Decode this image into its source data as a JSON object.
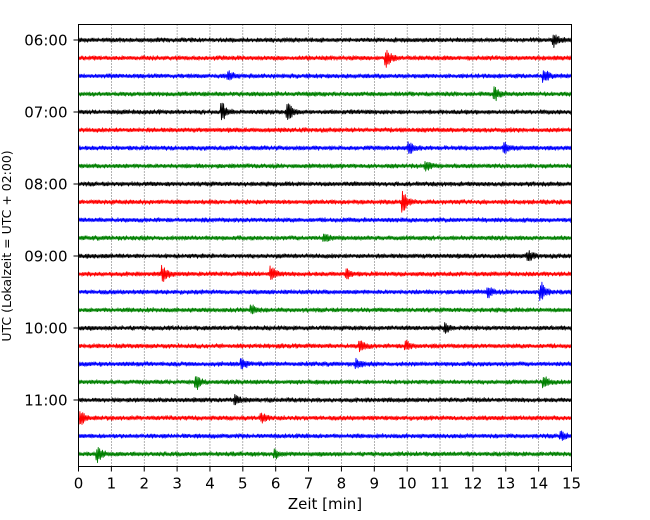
{
  "chart_data": {
    "type": "line",
    "xlabel": "Zeit  [min]",
    "ylabel": "UTC (Lokalzeit = UTC + 02:00)",
    "xlim": [
      0,
      15
    ],
    "x_ticks": [
      0,
      1,
      2,
      3,
      4,
      5,
      6,
      7,
      8,
      9,
      10,
      11,
      12,
      13,
      14,
      15
    ],
    "y_tick_labels": [
      "06:00",
      "07:00",
      "08:00",
      "09:00",
      "10:00",
      "11:00"
    ],
    "trace_minutes": 15,
    "trace_colors": [
      "#000000",
      "#ff0000",
      "#0000ff",
      "#008000"
    ],
    "grid": "vertical dotted lines at each minute",
    "traces": [
      {
        "start": "06:00",
        "color": "#000000",
        "events": [
          [
            14.5,
            1.0
          ]
        ]
      },
      {
        "start": "06:15",
        "color": "#ff0000",
        "events": [
          [
            9.4,
            1.2
          ]
        ]
      },
      {
        "start": "06:30",
        "color": "#0000ff",
        "events": [
          [
            14.2,
            0.9
          ],
          [
            4.6,
            0.6
          ]
        ]
      },
      {
        "start": "06:45",
        "color": "#008000",
        "events": [
          [
            12.7,
            0.9
          ]
        ]
      },
      {
        "start": "07:00",
        "color": "#000000",
        "events": [
          [
            4.4,
            1.2
          ],
          [
            6.4,
            1.2
          ]
        ]
      },
      {
        "start": "07:15",
        "color": "#ff0000",
        "events": []
      },
      {
        "start": "07:30",
        "color": "#0000ff",
        "events": [
          [
            10.1,
            0.9
          ],
          [
            13.0,
            0.7
          ]
        ]
      },
      {
        "start": "07:45",
        "color": "#008000",
        "events": [
          [
            10.6,
            0.6
          ]
        ]
      },
      {
        "start": "08:00",
        "color": "#000000",
        "events": []
      },
      {
        "start": "08:15",
        "color": "#ff0000",
        "events": [
          [
            9.9,
            1.5
          ]
        ]
      },
      {
        "start": "08:30",
        "color": "#0000ff",
        "events": []
      },
      {
        "start": "08:45",
        "color": "#008000",
        "events": [
          [
            7.5,
            0.6
          ]
        ]
      },
      {
        "start": "09:00",
        "color": "#000000",
        "events": [
          [
            13.7,
            0.7
          ]
        ]
      },
      {
        "start": "09:15",
        "color": "#ff0000",
        "events": [
          [
            2.6,
            1.1
          ],
          [
            5.9,
            1.1
          ],
          [
            8.2,
            0.6
          ]
        ]
      },
      {
        "start": "09:30",
        "color": "#0000ff",
        "events": [
          [
            14.1,
            1.3
          ],
          [
            12.5,
            0.7
          ]
        ]
      },
      {
        "start": "09:45",
        "color": "#008000",
        "events": [
          [
            5.3,
            0.6
          ]
        ]
      },
      {
        "start": "10:00",
        "color": "#000000",
        "events": [
          [
            11.2,
            0.6
          ]
        ]
      },
      {
        "start": "10:15",
        "color": "#ff0000",
        "events": [
          [
            8.6,
            0.8
          ],
          [
            10.0,
            0.7
          ]
        ]
      },
      {
        "start": "10:30",
        "color": "#0000ff",
        "events": [
          [
            5.0,
            0.7
          ],
          [
            8.5,
            0.6
          ]
        ]
      },
      {
        "start": "10:45",
        "color": "#008000",
        "events": [
          [
            3.6,
            1.1
          ],
          [
            14.2,
            0.7
          ]
        ]
      },
      {
        "start": "11:00",
        "color": "#000000",
        "events": [
          [
            4.8,
            0.6
          ]
        ]
      },
      {
        "start": "11:15",
        "color": "#ff0000",
        "events": [
          [
            0.1,
            0.9
          ],
          [
            5.6,
            0.6
          ]
        ]
      },
      {
        "start": "11:30",
        "color": "#0000ff",
        "events": [
          [
            14.7,
            0.6
          ]
        ]
      },
      {
        "start": "11:45",
        "color": "#008000",
        "events": [
          [
            0.6,
            1.1
          ],
          [
            6.0,
            0.6
          ]
        ]
      }
    ]
  }
}
